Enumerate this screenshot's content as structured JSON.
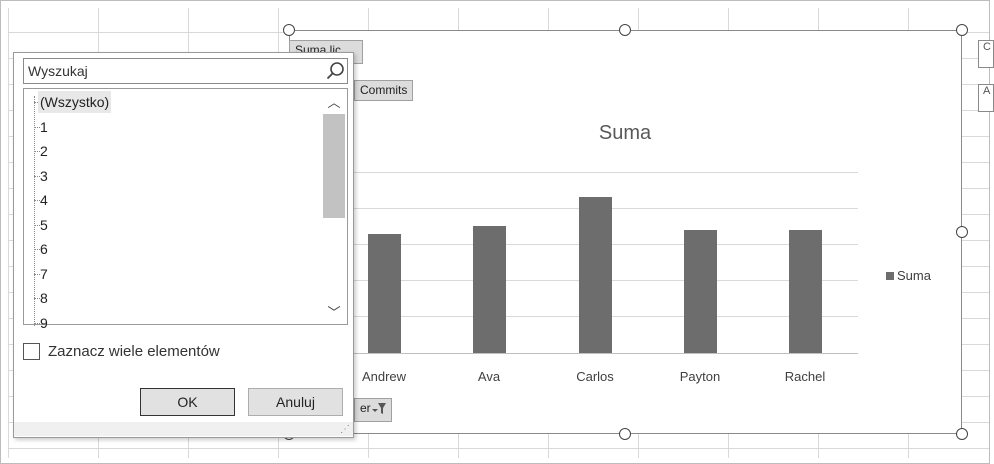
{
  "chart_area": {
    "field_button_top": "Suma lic",
    "field_button_commits": "Commits",
    "field_button_filter": "er",
    "side_box_1": "C",
    "side_box_2": "A"
  },
  "chart_data": {
    "type": "bar",
    "title": "Suma",
    "categories": [
      "Andrew",
      "Ava",
      "Carlos",
      "Payton",
      "Rachel"
    ],
    "series": [
      {
        "name": "Suma",
        "values": [
          3.3,
          3.5,
          4.3,
          3.4,
          3.4
        ]
      }
    ],
    "ylim": [
      0,
      5
    ],
    "grid": true,
    "legend": "right",
    "colors": {
      "bar": "#6d6d6d"
    }
  },
  "filter_popup": {
    "search_placeholder": "Wyszukaj",
    "items": [
      {
        "label": "(Wszystko)",
        "selected": true
      },
      {
        "label": "1"
      },
      {
        "label": "2"
      },
      {
        "label": "3"
      },
      {
        "label": "4"
      },
      {
        "label": "5"
      },
      {
        "label": "6"
      },
      {
        "label": "7"
      },
      {
        "label": "8"
      },
      {
        "label": "9"
      }
    ],
    "multi_select_label": "Zaznacz wiele elementów",
    "multi_select_checked": false,
    "ok_label": "OK",
    "cancel_label": "Anuluj"
  }
}
